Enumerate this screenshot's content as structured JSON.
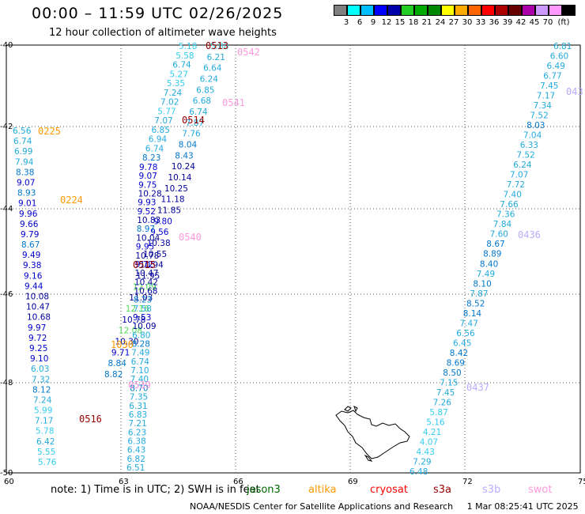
{
  "title": "00:00 – 11:59 UTC 02/26/2025",
  "subtitle": "12 hour collection of altimeter wave heights",
  "scale": {
    "unit": "(ft)",
    "labels": [
      "3",
      "6",
      "9",
      "12",
      "15",
      "18",
      "21",
      "24",
      "27",
      "30",
      "33",
      "36",
      "39",
      "42",
      "45",
      "70"
    ],
    "colors": [
      "#808080",
      "#00ffff",
      "#00bfff",
      "#0000ff",
      "#0000aa",
      "#22cc22",
      "#00aa00",
      "#008800",
      "#ffff00",
      "#ffaa00",
      "#ff6600",
      "#ff0000",
      "#aa0000",
      "#660000",
      "#aa00aa",
      "#cc99ff",
      "#ff99ff",
      "#000000"
    ]
  },
  "axes": {
    "lon_ticks": [
      "60",
      "63",
      "66",
      "69",
      "72",
      "75"
    ],
    "lat_ticks": [
      "-40",
      "-42",
      "-44",
      "-46",
      "-48",
      "-50"
    ]
  },
  "note_prefix": "note: 1) Time is in UTC; 2) SWH is in feet",
  "satellites": [
    {
      "name": "jason3",
      "color": "#006600"
    },
    {
      "name": "altika",
      "color": "#ff9900"
    },
    {
      "name": "cryosat",
      "color": "#ff0000"
    },
    {
      "name": "s3a",
      "color": "#990000"
    },
    {
      "name": "s3b",
      "color": "#bbaaff"
    },
    {
      "name": "swot",
      "color": "#ff99dd"
    }
  ],
  "footer": "NOAA/NESDIS Center for Satellite Applications and Research     1 Mar 08:25:41 UTC 2025",
  "pass_labels": [
    {
      "text": "0513",
      "color": "#990000"
    },
    {
      "text": "0542",
      "color": "#ff99dd"
    },
    {
      "text": "0541",
      "color": "#ff99dd"
    },
    {
      "text": "0514",
      "color": "#990000"
    },
    {
      "text": "0225",
      "color": "#ff9900"
    },
    {
      "text": "0224",
      "color": "#ff9900"
    },
    {
      "text": "0540",
      "color": "#ff99dd"
    },
    {
      "text": "0515",
      "color": "#990000"
    },
    {
      "text": "0436",
      "color": "#bbaaff"
    },
    {
      "text": "0539",
      "color": "#ff99dd"
    },
    {
      "text": "0516",
      "color": "#990000"
    },
    {
      "text": "0437",
      "color": "#bbaaff"
    },
    {
      "text": "043",
      "color": "#bbaaff"
    },
    {
      "text": "1030",
      "color": "#ff9900"
    }
  ],
  "tracks": {
    "swot_left": [
      "5.18",
      "5.58",
      "6.74",
      "5.27",
      "5.35",
      "7.24",
      "7.02",
      "5.77",
      "7.07",
      "6.85",
      "6.94",
      "6.74",
      "8.23"
    ],
    "s3a_left": [
      "5.88",
      "6.21",
      "6.64",
      "6.24",
      "6.85",
      "6.68",
      "6.74",
      "7.87",
      "7.76",
      "8.04",
      "8.43",
      "10.24",
      "10.14",
      "10.25",
      "11.18",
      "11.85",
      "9.80",
      "9.56",
      "10.38",
      "10.55",
      "10.94",
      "11.95",
      "12.09",
      "11.03",
      "12.16",
      "10.78",
      "12.08",
      "10.30",
      "9.71",
      "8.84",
      "8.82"
    ],
    "altika_west": [
      "6.56",
      "6.74",
      "6.99",
      "7.94",
      "8.38",
      "9.07",
      "8.93",
      "9.01",
      "9.96",
      "9.66",
      "9.79",
      "8.67",
      "9.49",
      "9.38",
      "9.16",
      "9.44",
      "10.08",
      "10.47",
      "10.68",
      "9.97",
      "9.72",
      "9.25",
      "9.10",
      "6.03",
      "7.32",
      "8.12",
      "7.24",
      "5.99",
      "7.17",
      "5.78",
      "6.42",
      "5.55",
      "5.76"
    ],
    "altika_mid": [
      "9.78",
      "9.07",
      "9.75",
      "10.28",
      "9.93",
      "9.52",
      "10.83",
      "8.97",
      "10.04",
      "9.95",
      "10.78",
      "9.72",
      "10.47",
      "10.42",
      "10.68",
      "8.23",
      "7.58",
      "9.53",
      "10.09",
      "6.80",
      "8.28",
      "7.49",
      "6.74",
      "7.10",
      "7.40",
      "8.70",
      "7.35",
      "6.31",
      "6.83",
      "7.21",
      "6.23",
      "6.38",
      "6.43",
      "6.82",
      "6.51"
    ],
    "s3b_right": [
      "6.81",
      "6.60",
      "6.49",
      "6.77",
      "7.45",
      "7.17",
      "7.34",
      "7.52",
      "8.03",
      "7.04",
      "6.33",
      "7.52",
      "6.24",
      "7.07",
      "7.72",
      "7.40",
      "7.66",
      "7.36",
      "7.84",
      "7.60",
      "8.67",
      "8.89",
      "8.40",
      "7.49",
      "8.10",
      "7.87",
      "8.52",
      "8.14",
      "7.47",
      "6.56",
      "6.45",
      "8.42",
      "8.69",
      "8.50",
      "7.15",
      "7.45",
      "7.26",
      "5.87",
      "5.16",
      "4.21",
      "4.07",
      "4.43",
      "7.29",
      "6.48"
    ]
  }
}
